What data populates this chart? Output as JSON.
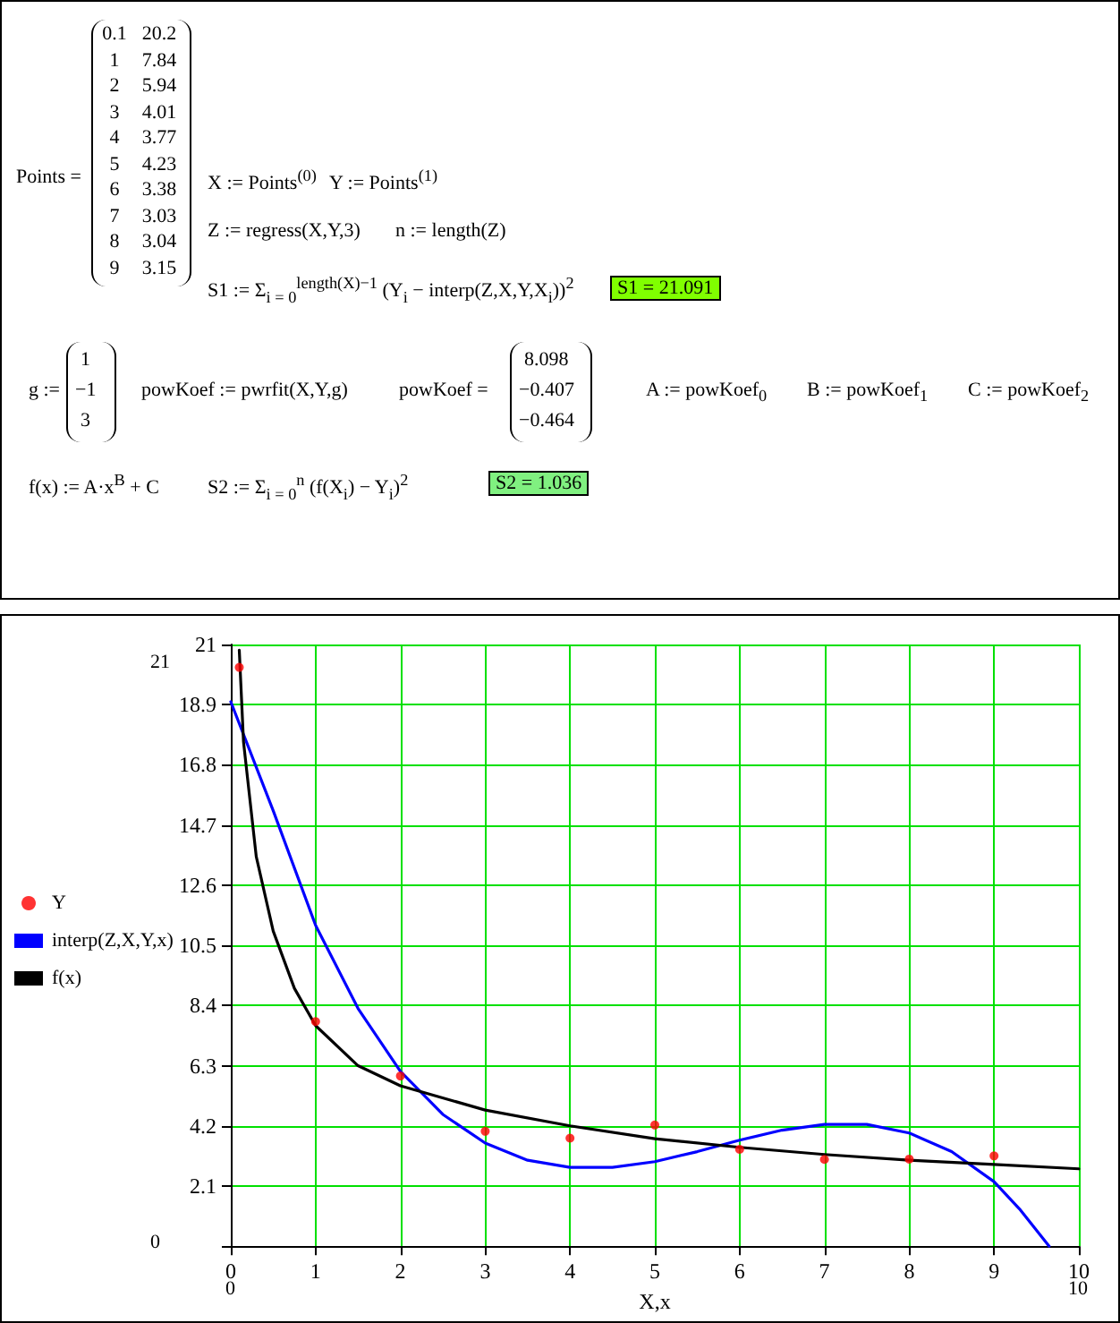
{
  "chart_data": {
    "type": "line",
    "xlabel": "X,x",
    "xlim": [
      0,
      10
    ],
    "xticks": [
      0,
      1,
      2,
      3,
      4,
      5,
      6,
      7,
      8,
      9,
      10
    ],
    "ylim": [
      0,
      21
    ],
    "yticks": [
      {
        "value": 0,
        "label": null
      },
      2.1,
      4.2,
      6.3,
      8.4,
      10.5,
      12.6,
      14.7,
      16.8,
      18.9,
      21
    ],
    "grid": true,
    "legend": "left",
    "series": [
      {
        "name": "Y",
        "type": "scatter",
        "marker": "circle",
        "color": "#ff0000",
        "x": [
          0.1,
          1,
          2,
          3,
          4,
          5,
          6,
          7,
          8,
          9
        ],
        "values": [
          20.2,
          7.84,
          5.94,
          4.01,
          3.77,
          4.23,
          3.38,
          3.03,
          3.04,
          3.15
        ]
      },
      {
        "name": "interp(Z,X,Y,x)",
        "type": "line",
        "marker": "none",
        "color": "#0000ff",
        "x": [
          0,
          0.5,
          1,
          1.5,
          2,
          2.5,
          3,
          3.5,
          4,
          4.5,
          5,
          5.5,
          6,
          6.5,
          7,
          7.5,
          8,
          8.5,
          9,
          9.3,
          9.65
        ],
        "values": [
          19.0,
          15.2,
          11.2,
          8.3,
          6.1,
          4.6,
          3.6,
          3.0,
          2.75,
          2.75,
          2.95,
          3.3,
          3.7,
          4.05,
          4.25,
          4.25,
          3.95,
          3.3,
          2.25,
          1.3,
          0
        ]
      },
      {
        "name": "f(x)",
        "type": "line",
        "marker": "none",
        "color": "#000000",
        "x": [
          0.1,
          0.15,
          0.3,
          0.5,
          0.75,
          1,
          1.5,
          2,
          3,
          4,
          5,
          6,
          7,
          8,
          9,
          10
        ],
        "values": [
          20.8,
          17.6,
          13.6,
          11.0,
          9.0,
          7.7,
          6.3,
          5.6,
          4.75,
          4.2,
          3.75,
          3.45,
          3.2,
          3.0,
          2.85,
          2.7
        ]
      }
    ],
    "annotations": [
      "Points =",
      "X := Points$^{(0)}$",
      "Y := Points$^{(1)}$",
      "Z := regress(X,Y,3)",
      "n := length(Z)",
      "S1 := Σ$_{i = 0}$$^{length(X)−1}$ (Y$_{i}$ − interp(Z,X,Y,X$_{i}$))$^{2}$",
      "S1 = 21.091",
      "g :=",
      "1",
      "−1",
      "3",
      "powKoef := pwrfit(X,Y,g)",
      "powKoef =",
      "8.098",
      "−0.407",
      "−0.464",
      "A := powKoef$_{0}$",
      "B := powKoef$_{1}$",
      "C := powKoef$_{2}$",
      "f(x) := A·x$^{B}$ + C",
      "S2 := Σ$_{i = 0}$$^{n}$ (f(X$_{i}$) − Y$_{i}$)$^{2}$",
      "S2 = 1.036",
      "21",
      "0",
      "0",
      "10",
      "0.1",
      "20.2",
      "1",
      "7.84",
      "2",
      "5.94",
      "3",
      "4.01",
      "4",
      "3.77",
      "5",
      "4.23",
      "6",
      "3.38",
      "7",
      "3.03",
      "8",
      "3.04",
      "9",
      "3.15"
    ]
  }
}
